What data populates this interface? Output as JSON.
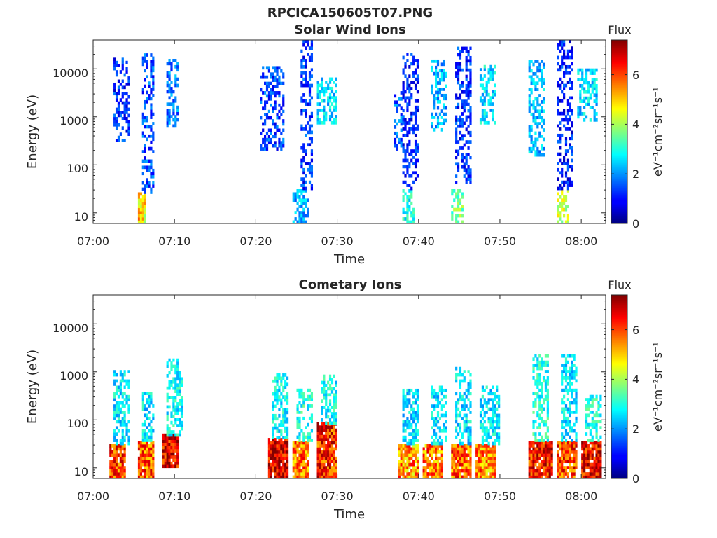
{
  "figure_title": "RPCICA150605T07.PNG",
  "colorbar": {
    "label": "Flux",
    "unit": "eV⁻¹cm⁻²sr⁻¹s⁻¹",
    "range": [
      0,
      7.4
    ],
    "ticks": [
      0,
      2,
      4,
      6
    ],
    "colormap": "jet"
  },
  "chart_data": [
    {
      "type": "heatmap",
      "title": "Solar Wind Ions",
      "xlabel": "Time",
      "ylabel": "Energy (eV)",
      "xlim": [
        "07:00",
        "08:03"
      ],
      "ylim": [
        6,
        40000
      ],
      "yscale": "log",
      "xticks": [
        "07:00",
        "07:10",
        "07:20",
        "07:30",
        "07:40",
        "07:50",
        "08:00"
      ],
      "yticks": [
        10,
        100,
        1000,
        10000
      ],
      "grid": false,
      "bursts": [
        {
          "time_start": "07:05.5",
          "time_end": "07:06.5",
          "energy_min": 5,
          "energy_max": 25,
          "flux": 4.8
        },
        {
          "time_start": "07:06",
          "time_end": "07:07.5",
          "energy_min": 25,
          "energy_max": 20000,
          "flux": 1.5
        },
        {
          "time_start": "07:02.5",
          "time_end": "07:04.5",
          "energy_min": 300,
          "energy_max": 15000,
          "flux": 1.2
        },
        {
          "time_start": "07:09",
          "time_end": "07:10.5",
          "energy_min": 600,
          "energy_max": 15000,
          "flux": 1.8
        },
        {
          "time_start": "07:20.5",
          "time_end": "07:23.5",
          "energy_min": 200,
          "energy_max": 10000,
          "flux": 1.4
        },
        {
          "time_start": "07:24.5",
          "time_end": "07:26.5",
          "energy_min": 6,
          "energy_max": 30,
          "flux": 2.2
        },
        {
          "time_start": "07:25.5",
          "time_end": "07:27",
          "energy_min": 30,
          "energy_max": 35000,
          "flux": 1.3
        },
        {
          "time_start": "07:27.5",
          "time_end": "07:30",
          "energy_min": 700,
          "energy_max": 6000,
          "flux": 2.5
        },
        {
          "time_start": "07:37",
          "time_end": "07:38",
          "energy_min": 200,
          "energy_max": 3000,
          "flux": 1.6
        },
        {
          "time_start": "07:38",
          "time_end": "07:39.5",
          "energy_min": 6,
          "energy_max": 30,
          "flux": 2.8
        },
        {
          "time_start": "07:38",
          "time_end": "07:40",
          "energy_min": 30,
          "energy_max": 20000,
          "flux": 1.1
        },
        {
          "time_start": "07:41.5",
          "time_end": "07:43.5",
          "energy_min": 500,
          "energy_max": 15000,
          "flux": 2.2
        },
        {
          "time_start": "07:44",
          "time_end": "07:45.5",
          "energy_min": 6,
          "energy_max": 30,
          "flux": 3.6
        },
        {
          "time_start": "07:44.5",
          "time_end": "07:46.5",
          "energy_min": 40,
          "energy_max": 25000,
          "flux": 1.2
        },
        {
          "time_start": "07:47.5",
          "time_end": "07:49.5",
          "energy_min": 700,
          "energy_max": 12000,
          "flux": 2.6
        },
        {
          "time_start": "07:53.5",
          "time_end": "07:55.5",
          "energy_min": 150,
          "energy_max": 15000,
          "flux": 2.3
        },
        {
          "time_start": "07:57",
          "time_end": "07:58.5",
          "energy_min": 6,
          "energy_max": 30,
          "flux": 4.2
        },
        {
          "time_start": "07:57",
          "time_end": "07:59",
          "energy_min": 30,
          "energy_max": 35000,
          "flux": 1.1
        },
        {
          "time_start": "07:59.5",
          "time_end": "08:02",
          "energy_min": 800,
          "energy_max": 10000,
          "flux": 2.5
        }
      ]
    },
    {
      "type": "heatmap",
      "title": "Cometary Ions",
      "xlabel": "Time",
      "ylabel": "Energy (eV)",
      "xlim": [
        "07:00",
        "08:03"
      ],
      "ylim": [
        6,
        40000
      ],
      "yscale": "log",
      "xticks": [
        "07:00",
        "07:10",
        "07:20",
        "07:30",
        "07:40",
        "07:50",
        "08:00"
      ],
      "yticks": [
        10,
        100,
        1000,
        10000
      ],
      "grid": false,
      "bursts": [
        {
          "time_start": "07:02",
          "time_end": "07:04",
          "energy_min": 6,
          "energy_max": 30,
          "flux": 6.0
        },
        {
          "time_start": "07:02.5",
          "time_end": "07:04.5",
          "energy_min": 30,
          "energy_max": 1000,
          "flux": 2.6
        },
        {
          "time_start": "07:05.5",
          "time_end": "07:07.5",
          "energy_min": 6,
          "energy_max": 35,
          "flux": 5.8
        },
        {
          "time_start": "07:06",
          "time_end": "07:07.5",
          "energy_min": 35,
          "energy_max": 350,
          "flux": 2.6
        },
        {
          "time_start": "07:08.5",
          "time_end": "07:10.5",
          "energy_min": 10,
          "energy_max": 45,
          "flux": 6.6
        },
        {
          "time_start": "07:09",
          "time_end": "07:11",
          "energy_min": 45,
          "energy_max": 1700,
          "flux": 2.8
        },
        {
          "time_start": "07:21.5",
          "time_end": "07:24",
          "energy_min": 6,
          "energy_max": 40,
          "flux": 6.8
        },
        {
          "time_start": "07:22",
          "time_end": "07:24",
          "energy_min": 40,
          "energy_max": 800,
          "flux": 2.8
        },
        {
          "time_start": "07:24.5",
          "time_end": "07:26.5",
          "energy_min": 6,
          "energy_max": 35,
          "flux": 5.6
        },
        {
          "time_start": "07:25",
          "time_end": "07:27",
          "energy_min": 35,
          "energy_max": 400,
          "flux": 3.0
        },
        {
          "time_start": "07:27.5",
          "time_end": "07:30",
          "energy_min": 6,
          "energy_max": 80,
          "flux": 6.2
        },
        {
          "time_start": "07:28",
          "time_end": "07:30",
          "energy_min": 80,
          "energy_max": 800,
          "flux": 2.8
        },
        {
          "time_start": "07:37.5",
          "time_end": "07:40",
          "energy_min": 6,
          "energy_max": 30,
          "flux": 5.4
        },
        {
          "time_start": "07:38",
          "time_end": "07:40",
          "energy_min": 30,
          "energy_max": 400,
          "flux": 2.5
        },
        {
          "time_start": "07:40.5",
          "time_end": "07:43",
          "energy_min": 6,
          "energy_max": 30,
          "flux": 5.6
        },
        {
          "time_start": "07:41.5",
          "time_end": "07:43.5",
          "energy_min": 30,
          "energy_max": 500,
          "flux": 2.6
        },
        {
          "time_start": "07:44",
          "time_end": "07:46.5",
          "energy_min": 6,
          "energy_max": 30,
          "flux": 5.8
        },
        {
          "time_start": "07:44.5",
          "time_end": "07:46.5",
          "energy_min": 30,
          "energy_max": 1100,
          "flux": 2.6
        },
        {
          "time_start": "07:47",
          "time_end": "07:49.5",
          "energy_min": 6,
          "energy_max": 30,
          "flux": 5.4
        },
        {
          "time_start": "07:47.5",
          "time_end": "07:50",
          "energy_min": 30,
          "energy_max": 500,
          "flux": 2.6
        },
        {
          "time_start": "07:53.5",
          "time_end": "07:56.5",
          "energy_min": 6,
          "energy_max": 35,
          "flux": 6.4
        },
        {
          "time_start": "07:54",
          "time_end": "07:56",
          "energy_min": 35,
          "energy_max": 2000,
          "flux": 3.0
        },
        {
          "time_start": "07:57",
          "time_end": "07:59.5",
          "energy_min": 6,
          "energy_max": 35,
          "flux": 6.0
        },
        {
          "time_start": "07:57.5",
          "time_end": "07:59.5",
          "energy_min": 35,
          "energy_max": 2000,
          "flux": 2.6
        },
        {
          "time_start": "08:00",
          "time_end": "08:02.5",
          "energy_min": 6,
          "energy_max": 35,
          "flux": 6.6
        },
        {
          "time_start": "08:00.5",
          "time_end": "08:02.5",
          "energy_min": 35,
          "energy_max": 300,
          "flux": 3.0
        }
      ]
    }
  ]
}
